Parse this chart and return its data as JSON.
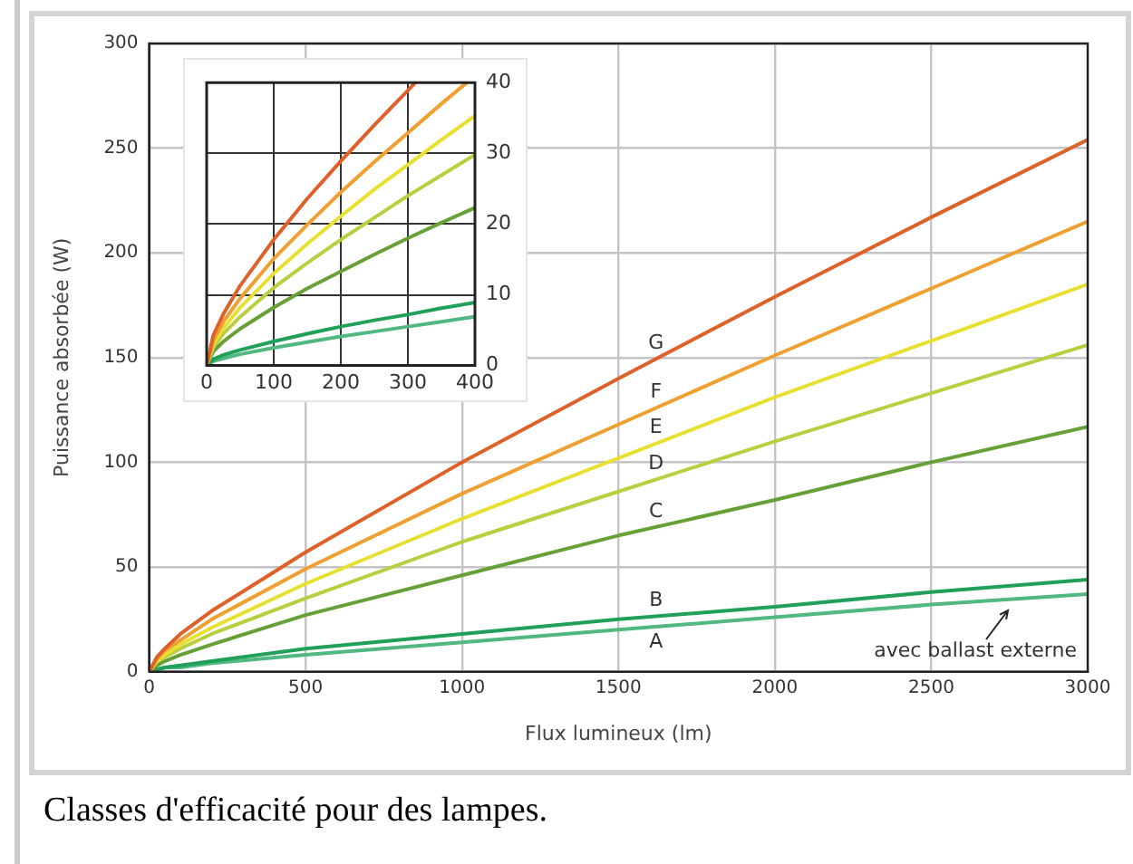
{
  "chart_data": [
    {
      "type": "line",
      "xlabel": "Flux lumineux (lm)",
      "ylabel": "Puissance absorbée (W)",
      "x": [
        0,
        25,
        50,
        100,
        200,
        500,
        1000,
        1500,
        2000,
        2500,
        3000
      ],
      "xlim": [
        0,
        3000
      ],
      "xticks": [
        0,
        500,
        1000,
        1500,
        2000,
        2500,
        3000
      ],
      "ylim": [
        0,
        300
      ],
      "yticks": [
        0,
        50,
        100,
        150,
        200,
        250,
        300
      ],
      "grid": true,
      "marker": "none",
      "series": [
        {
          "name": "G",
          "color": "#e0602a",
          "values": [
            0,
            7,
            11,
            18,
            29,
            57,
            100,
            140,
            179,
            217,
            254
          ]
        },
        {
          "name": "F",
          "color": "#f0a030",
          "values": [
            0,
            6,
            10,
            15,
            25,
            49,
            85,
            118,
            151,
            183,
            215
          ]
        },
        {
          "name": "E",
          "color": "#e8e030",
          "values": [
            0,
            5,
            8,
            13,
            21,
            42,
            73,
            102,
            131,
            158,
            185
          ]
        },
        {
          "name": "D",
          "color": "#b8d040",
          "values": [
            0,
            5,
            7,
            11,
            18,
            35,
            62,
            86,
            110,
            133,
            156
          ]
        },
        {
          "name": "C",
          "color": "#68a038",
          "values": [
            0,
            3,
            5,
            8,
            13,
            27,
            46,
            65,
            82,
            100,
            117
          ]
        },
        {
          "name": "B",
          "color": "#20a058",
          "values": [
            0,
            1,
            2,
            3,
            5,
            11,
            18,
            25,
            31,
            38,
            44
          ]
        },
        {
          "name": "A",
          "color": "#50b880",
          "values": [
            0,
            1,
            2,
            2,
            4,
            8,
            14,
            20,
            26,
            32,
            37
          ]
        }
      ],
      "annotations": [
        "avec ballast externe",
        "Classes d'efficacité pour des lampes."
      ]
    },
    {
      "type": "line",
      "x": [
        0,
        10,
        25,
        50,
        100,
        150,
        200,
        250,
        300,
        350,
        400
      ],
      "xlim": [
        0,
        400
      ],
      "xticks": [
        0,
        100,
        200,
        300,
        400
      ],
      "ylim": [
        0,
        40
      ],
      "yticks": [
        0,
        10,
        20,
        30,
        40
      ],
      "grid": true,
      "marker": "none",
      "series": [
        {
          "color": "#e0602a",
          "x": [
            0,
            10,
            25,
            50,
            100,
            150,
            200,
            250,
            300,
            311
          ],
          "values": [
            0,
            4.3,
            7.3,
            11.3,
            17.8,
            23.6,
            28.9,
            34.0,
            38.9,
            40
          ]
        },
        {
          "color": "#f0a030",
          "x": [
            0,
            10,
            25,
            50,
            100,
            150,
            200,
            250,
            300,
            350,
            388
          ],
          "values": [
            0,
            3.6,
            6.2,
            9.5,
            15.1,
            19.9,
            24.5,
            28.8,
            32.9,
            37.0,
            40
          ]
        },
        {
          "color": "#e8e030",
          "values": [
            0,
            3.1,
            5.3,
            8.2,
            13.0,
            17.2,
            21.1,
            24.9,
            28.4,
            31.9,
            35.3
          ]
        },
        {
          "color": "#b8d040",
          "values": [
            0,
            2.6,
            4.5,
            6.9,
            11.0,
            14.5,
            17.8,
            20.9,
            24.0,
            26.9,
            29.8
          ]
        },
        {
          "color": "#68a038",
          "values": [
            0,
            2.0,
            3.4,
            5.2,
            8.2,
            10.9,
            13.3,
            15.7,
            18.0,
            20.2,
            22.3
          ]
        },
        {
          "color": "#20a058",
          "values": [
            0,
            0.9,
            1.5,
            2.2,
            3.4,
            4.5,
            5.5,
            6.4,
            7.2,
            8.1,
            8.9
          ]
        },
        {
          "color": "#50b880",
          "values": [
            0,
            0.6,
            1.0,
            1.6,
            2.5,
            3.3,
            4.1,
            4.8,
            5.5,
            6.2,
            6.9
          ]
        }
      ]
    }
  ]
}
